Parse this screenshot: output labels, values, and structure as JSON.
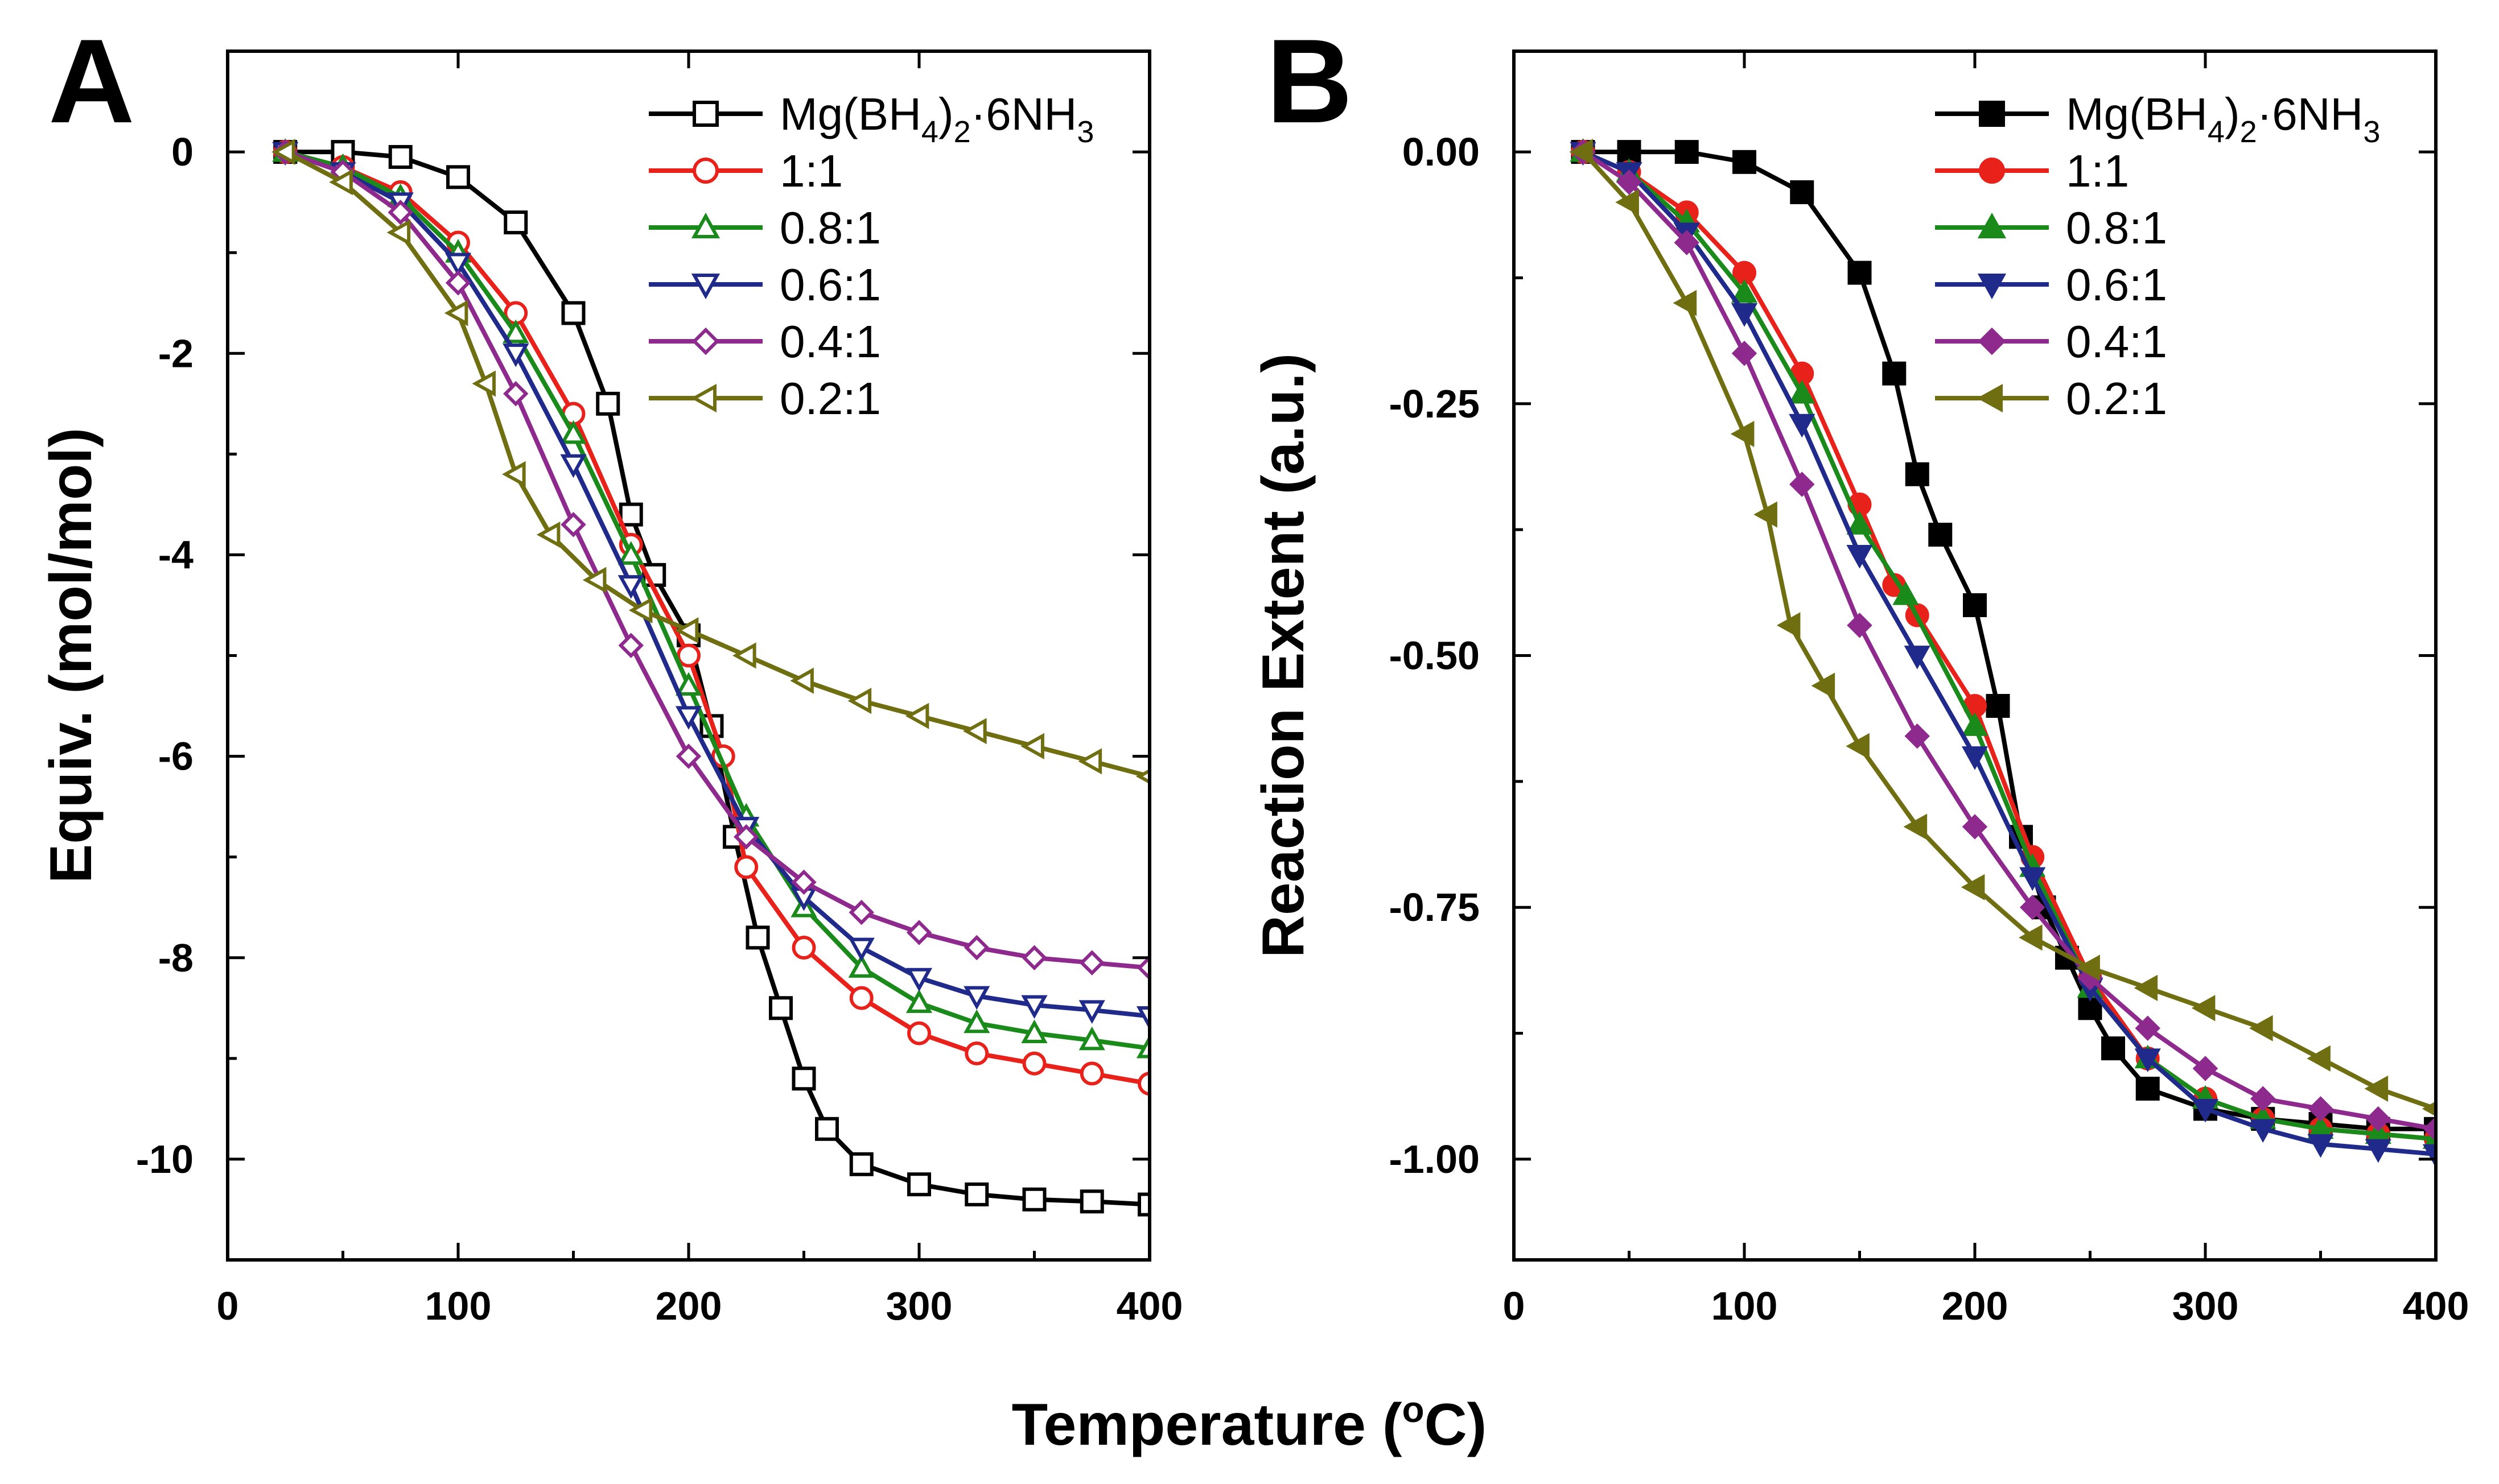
{
  "figure": {
    "xlabel": "Temperature (°C)",
    "xlabel_main": "Temperature (",
    "xlabel_degree": "o",
    "xlabel_unit": "C)"
  },
  "chart_data": [
    {
      "panel_label": "A",
      "type": "line",
      "title": "",
      "xlabel": "Temperature (°C)",
      "ylabel": "Equiv. (mol/mol)",
      "xlim": [
        0,
        400
      ],
      "ylim": [
        -11,
        1
      ],
      "xticks": [
        0,
        100,
        200,
        300,
        400
      ],
      "xtick_labels": [
        "0",
        "100",
        "200",
        "300",
        "400"
      ],
      "yticks": [
        0,
        -2,
        -4,
        -6,
        -8,
        -10
      ],
      "ytick_labels": [
        "0",
        "-2",
        "-4",
        "-6",
        "-8",
        "-10"
      ],
      "legend_position": "top-right",
      "series": [
        {
          "name": "Mg(BH4)2·6NH3",
          "label_parts": [
            "Mg(BH",
            "4",
            ")",
            "2",
            "·6NH",
            "3"
          ],
          "color": "#000000",
          "marker": "square-open",
          "x": [
            25,
            50,
            75,
            100,
            125,
            150,
            165,
            175,
            185,
            200,
            210,
            220,
            230,
            240,
            250,
            260,
            275,
            300,
            325,
            350,
            375,
            400
          ],
          "y": [
            0,
            0,
            -0.05,
            -0.25,
            -0.7,
            -1.6,
            -2.5,
            -3.6,
            -4.2,
            -4.8,
            -5.7,
            -6.8,
            -7.8,
            -8.5,
            -9.2,
            -9.7,
            -10.05,
            -10.25,
            -10.35,
            -10.4,
            -10.42,
            -10.45
          ]
        },
        {
          "name": "1:1",
          "label_parts": [
            "1:1"
          ],
          "color": "#e8211b",
          "marker": "circle-open",
          "x": [
            25,
            50,
            75,
            100,
            125,
            150,
            175,
            200,
            215,
            225,
            250,
            275,
            300,
            325,
            350,
            375,
            400
          ],
          "y": [
            0,
            -0.15,
            -0.4,
            -0.9,
            -1.6,
            -2.6,
            -3.9,
            -5.0,
            -6.0,
            -7.1,
            -7.9,
            -8.4,
            -8.75,
            -8.95,
            -9.05,
            -9.15,
            -9.25
          ]
        },
        {
          "name": "0.8:1",
          "label_parts": [
            "0.8:1"
          ],
          "color": "#1a8a1a",
          "marker": "triangle-up-open",
          "x": [
            25,
            50,
            75,
            100,
            125,
            150,
            175,
            200,
            225,
            250,
            275,
            300,
            325,
            350,
            375,
            400
          ],
          "y": [
            0,
            -0.15,
            -0.45,
            -1.0,
            -1.8,
            -2.8,
            -4.0,
            -5.3,
            -6.6,
            -7.5,
            -8.1,
            -8.45,
            -8.65,
            -8.75,
            -8.82,
            -8.9
          ]
        },
        {
          "name": "0.6:1",
          "label_parts": [
            "0.6:1"
          ],
          "color": "#1f2a8a",
          "marker": "triangle-down-open",
          "x": [
            25,
            50,
            75,
            100,
            125,
            150,
            175,
            200,
            225,
            250,
            275,
            300,
            325,
            350,
            375,
            400
          ],
          "y": [
            0,
            -0.2,
            -0.5,
            -1.1,
            -2.0,
            -3.1,
            -4.3,
            -5.6,
            -6.7,
            -7.4,
            -7.9,
            -8.2,
            -8.38,
            -8.47,
            -8.52,
            -8.58
          ]
        },
        {
          "name": "0.4:1",
          "label_parts": [
            "0.4:1"
          ],
          "color": "#8e2a8e",
          "marker": "diamond-open",
          "x": [
            25,
            50,
            75,
            100,
            125,
            150,
            175,
            200,
            225,
            250,
            275,
            300,
            325,
            350,
            375,
            400
          ],
          "y": [
            0,
            -0.2,
            -0.6,
            -1.3,
            -2.4,
            -3.7,
            -4.9,
            -6.0,
            -6.8,
            -7.25,
            -7.55,
            -7.75,
            -7.9,
            -8.0,
            -8.05,
            -8.1
          ]
        },
        {
          "name": "0.2:1",
          "label_parts": [
            "0.2:1"
          ],
          "color": "#6f6f12",
          "marker": "triangle-left-open",
          "x": [
            25,
            50,
            75,
            100,
            112,
            125,
            140,
            160,
            180,
            200,
            225,
            250,
            275,
            300,
            325,
            350,
            375,
            400
          ],
          "y": [
            0,
            -0.3,
            -0.8,
            -1.6,
            -2.3,
            -3.2,
            -3.8,
            -4.25,
            -4.55,
            -4.75,
            -5.0,
            -5.25,
            -5.45,
            -5.6,
            -5.75,
            -5.9,
            -6.05,
            -6.2
          ]
        }
      ]
    },
    {
      "panel_label": "B",
      "type": "line",
      "title": "",
      "xlabel": "Temperature (°C)",
      "ylabel": "Reaction Extent (a.u.)",
      "xlim": [
        0,
        400
      ],
      "ylim": [
        -1.1,
        0.1
      ],
      "xticks": [
        0,
        100,
        200,
        300,
        400
      ],
      "xtick_labels": [
        "0",
        "100",
        "200",
        "300",
        "400"
      ],
      "yticks": [
        0,
        -0.25,
        -0.5,
        -0.75,
        -1.0
      ],
      "ytick_labels": [
        "0.00",
        "-0.25",
        "-0.50",
        "-0.75",
        "-1.00"
      ],
      "legend_position": "top-right",
      "series": [
        {
          "name": "Mg(BH4)2·6NH3",
          "label_parts": [
            "Mg(BH",
            "4",
            ")",
            "2",
            "·6NH",
            "3"
          ],
          "color": "#000000",
          "marker": "square-filled",
          "x": [
            30,
            50,
            75,
            100,
            125,
            150,
            165,
            175,
            185,
            200,
            210,
            220,
            230,
            240,
            250,
            260,
            275,
            300,
            325,
            350,
            375,
            400
          ],
          "y": [
            0,
            0,
            0,
            -0.01,
            -0.04,
            -0.12,
            -0.22,
            -0.32,
            -0.38,
            -0.45,
            -0.55,
            -0.68,
            -0.75,
            -0.8,
            -0.85,
            -0.89,
            -0.93,
            -0.95,
            -0.96,
            -0.965,
            -0.97,
            -0.97
          ]
        },
        {
          "name": "1:1",
          "label_parts": [
            "1:1"
          ],
          "color": "#e8211b",
          "marker": "circle-filled",
          "x": [
            30,
            50,
            75,
            100,
            125,
            150,
            165,
            175,
            200,
            225,
            250,
            275,
            300,
            325,
            350,
            375,
            400
          ],
          "y": [
            0,
            -0.02,
            -0.06,
            -0.12,
            -0.22,
            -0.35,
            -0.43,
            -0.46,
            -0.55,
            -0.7,
            -0.82,
            -0.9,
            -0.94,
            -0.96,
            -0.97,
            -0.975,
            -0.98
          ]
        },
        {
          "name": "0.8:1",
          "label_parts": [
            "0.8:1"
          ],
          "color": "#1a8a1a",
          "marker": "triangle-up-filled",
          "x": [
            30,
            50,
            75,
            100,
            125,
            150,
            170,
            200,
            225,
            250,
            275,
            300,
            325,
            350,
            375,
            400
          ],
          "y": [
            0,
            -0.02,
            -0.07,
            -0.14,
            -0.24,
            -0.37,
            -0.44,
            -0.57,
            -0.71,
            -0.83,
            -0.9,
            -0.94,
            -0.96,
            -0.97,
            -0.975,
            -0.98
          ]
        },
        {
          "name": "0.6:1",
          "label_parts": [
            "0.6:1"
          ],
          "color": "#1f2a8a",
          "marker": "triangle-down-filled",
          "x": [
            30,
            50,
            75,
            100,
            125,
            150,
            175,
            200,
            225,
            250,
            275,
            300,
            325,
            350,
            375,
            400
          ],
          "y": [
            0,
            -0.02,
            -0.08,
            -0.16,
            -0.27,
            -0.4,
            -0.5,
            -0.6,
            -0.72,
            -0.83,
            -0.9,
            -0.95,
            -0.97,
            -0.985,
            -0.99,
            -0.995
          ]
        },
        {
          "name": "0.4:1",
          "label_parts": [
            "0.4:1"
          ],
          "color": "#8e2a8e",
          "marker": "diamond-filled",
          "x": [
            30,
            50,
            75,
            100,
            125,
            150,
            175,
            200,
            225,
            250,
            275,
            300,
            325,
            350,
            375,
            400
          ],
          "y": [
            0,
            -0.03,
            -0.09,
            -0.2,
            -0.33,
            -0.47,
            -0.58,
            -0.67,
            -0.75,
            -0.82,
            -0.87,
            -0.91,
            -0.94,
            -0.95,
            -0.96,
            -0.97
          ]
        },
        {
          "name": "0.2:1",
          "label_parts": [
            "0.2:1"
          ],
          "color": "#6f6f12",
          "marker": "triangle-left-filled",
          "x": [
            30,
            50,
            75,
            100,
            110,
            120,
            135,
            150,
            175,
            200,
            225,
            250,
            275,
            300,
            325,
            350,
            375,
            400
          ],
          "y": [
            0,
            -0.05,
            -0.15,
            -0.28,
            -0.36,
            -0.47,
            -0.53,
            -0.59,
            -0.67,
            -0.73,
            -0.78,
            -0.81,
            -0.83,
            -0.85,
            -0.87,
            -0.9,
            -0.93,
            -0.95
          ]
        }
      ]
    }
  ]
}
